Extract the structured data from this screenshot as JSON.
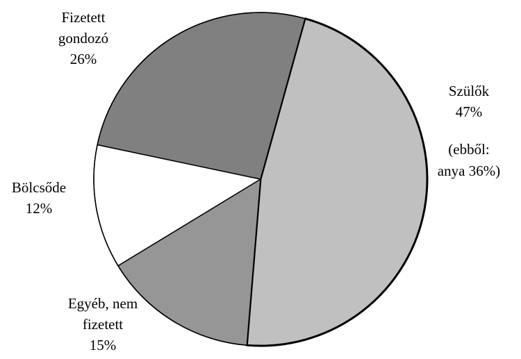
{
  "chart_data": {
    "type": "pie",
    "title": "",
    "slices": [
      {
        "name": "Szülők",
        "value": 47,
        "label": "47%",
        "note_line1": "(ebből:",
        "note_line2": "anya 36%)",
        "color": "#c0c0c0"
      },
      {
        "name_line1": "Egyéb, nem",
        "name_line2": "fizetett",
        "value": 15,
        "label": "15%",
        "color": "#969696"
      },
      {
        "name": "Bölcsőde",
        "value": 12,
        "label": "12%",
        "color": "#ffffff"
      },
      {
        "name_line1": "Fizetett",
        "name_line2": "gondozó",
        "value": 26,
        "label": "26%",
        "color": "#808080"
      }
    ],
    "legend": "none"
  }
}
